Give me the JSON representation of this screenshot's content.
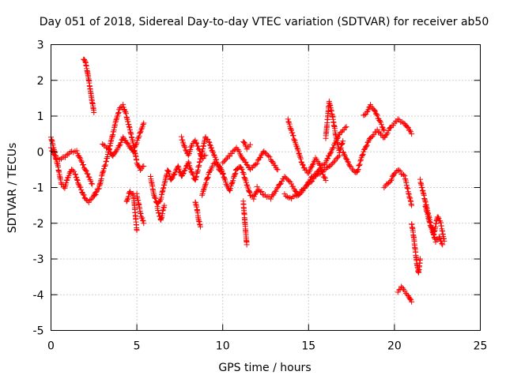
{
  "chart_data": {
    "type": "scatter",
    "title": "Day 051 of 2018, Sidereal Day-to-day VTEC variation (SDTVAR) for receiver ab50",
    "xlabel": "GPS time / hours",
    "ylabel": "SDTVAR / TECUs",
    "xlim": [
      0,
      25
    ],
    "ylim": [
      -5,
      3
    ],
    "xticks": [
      0,
      5,
      10,
      15,
      20,
      25
    ],
    "yticks": [
      -5,
      -4,
      -3,
      -2,
      -1,
      0,
      1,
      2,
      3
    ],
    "xtick_labels": [
      "0",
      "5",
      "10",
      "15",
      "20",
      "25"
    ],
    "ytick_labels": [
      "-5",
      "-4",
      "-3",
      "-2",
      "-1",
      "0",
      "1",
      "2",
      "3"
    ],
    "grid": true,
    "marker": "+",
    "series": [
      {
        "name": "SDTVAR",
        "color": "#ff0000",
        "segments": [
          {
            "x": [
              0.0,
              0.2,
              0.4,
              0.6,
              0.8,
              1.0,
              1.2,
              1.4,
              1.6,
              1.8,
              2.0,
              2.2,
              2.4,
              2.6
            ],
            "y": [
              0.4,
              0.0,
              -0.4,
              -0.9,
              -1.0,
              -0.7,
              -0.5,
              -0.6,
              -0.9,
              -1.1,
              -1.3,
              -1.4,
              -1.3,
              -1.2
            ]
          },
          {
            "x": [
              0.0,
              0.3,
              0.6,
              0.9,
              1.2,
              1.5,
              1.8,
              2.1,
              2.4
            ],
            "y": [
              0.1,
              -0.2,
              -0.2,
              -0.1,
              0.0,
              0.0,
              -0.3,
              -0.6,
              -0.9
            ]
          },
          {
            "x": [
              1.9,
              2.0,
              2.1,
              2.2,
              2.3,
              2.4,
              2.5
            ],
            "y": [
              2.6,
              2.5,
              2.3,
              2.0,
              1.7,
              1.4,
              1.1
            ]
          },
          {
            "x": [
              2.5,
              2.8,
              3.0,
              3.2,
              3.4,
              3.6,
              3.8,
              4.0,
              4.2,
              4.4,
              4.6,
              4.8,
              5.0,
              5.2,
              5.4
            ],
            "y": [
              -1.2,
              -1.0,
              -0.6,
              -0.3,
              0.1,
              0.5,
              0.9,
              1.2,
              1.3,
              1.0,
              0.6,
              0.2,
              -0.3,
              -0.5,
              -0.4
            ]
          },
          {
            "x": [
              3.0,
              3.3,
              3.6,
              3.9,
              4.2,
              4.5,
              4.8,
              5.1,
              5.4
            ],
            "y": [
              0.2,
              0.1,
              -0.1,
              0.1,
              0.4,
              0.2,
              0.0,
              0.4,
              0.8
            ]
          },
          {
            "x": [
              4.4,
              4.6,
              4.8,
              5.0
            ],
            "y": [
              -1.4,
              -1.1,
              -1.2,
              -2.2
            ]
          },
          {
            "x": [
              5.0,
              5.2,
              5.4
            ],
            "y": [
              -1.2,
              -1.7,
              -2.0
            ]
          },
          {
            "x": [
              5.8,
              6.0,
              6.2,
              6.4,
              6.6,
              6.8,
              7.0,
              7.2,
              7.4,
              7.6,
              7.8,
              8.0,
              8.2,
              8.4,
              8.6,
              8.8,
              9.0,
              9.2,
              9.4,
              9.6,
              9.8,
              10.0
            ],
            "y": [
              -0.7,
              -1.2,
              -1.5,
              -1.3,
              -0.9,
              -0.5,
              -0.8,
              -0.6,
              -0.4,
              -0.7,
              -0.5,
              -0.3,
              -0.6,
              -0.8,
              -0.4,
              0.0,
              0.4,
              0.3,
              0.0,
              -0.2,
              -0.5,
              -0.6
            ]
          },
          {
            "x": [
              6.2,
              6.4,
              6.6
            ],
            "y": [
              -1.6,
              -1.9,
              -1.5
            ]
          },
          {
            "x": [
              7.6,
              7.8,
              8.0,
              8.2,
              8.4,
              8.6,
              8.8,
              9.0
            ],
            "y": [
              0.4,
              0.1,
              -0.1,
              0.2,
              0.3,
              0.1,
              -0.2,
              -0.1
            ]
          },
          {
            "x": [
              8.4,
              8.5,
              8.6,
              8.7
            ],
            "y": [
              -1.4,
              -1.6,
              -1.9,
              -2.1
            ]
          },
          {
            "x": [
              8.8,
              9.0,
              9.2,
              9.4,
              9.6,
              9.8,
              10.0,
              10.2,
              10.4,
              10.6,
              10.8,
              11.0,
              11.2,
              11.4,
              11.6,
              11.8,
              12.0
            ],
            "y": [
              -1.2,
              -0.9,
              -0.6,
              -0.4,
              -0.3,
              -0.4,
              -0.6,
              -0.9,
              -1.1,
              -0.8,
              -0.5,
              -0.4,
              -0.6,
              -0.9,
              -1.2,
              -1.3,
              -1.1
            ]
          },
          {
            "x": [
              10.0,
              10.4,
              10.8,
              11.2,
              11.6,
              12.0,
              12.4,
              12.8,
              13.2
            ],
            "y": [
              -0.3,
              -0.1,
              0.1,
              -0.2,
              -0.5,
              -0.3,
              0.0,
              -0.2,
              -0.5
            ]
          },
          {
            "x": [
              11.2,
              11.3,
              11.4
            ],
            "y": [
              -1.4,
              -2.0,
              -2.6
            ]
          },
          {
            "x": [
              11.2,
              11.4,
              11.6
            ],
            "y": [
              0.3,
              0.1,
              0.2
            ]
          },
          {
            "x": [
              12.0,
              12.4,
              12.8,
              13.2,
              13.6,
              14.0,
              14.4,
              14.8,
              15.2,
              15.6,
              16.0,
              16.4,
              16.8,
              17.2
            ],
            "y": [
              -1.0,
              -1.2,
              -1.3,
              -1.0,
              -0.7,
              -0.9,
              -1.2,
              -1.0,
              -0.8,
              -0.5,
              -0.3,
              0.1,
              0.5,
              0.7
            ]
          },
          {
            "x": [
              13.6,
              14.0,
              14.4,
              14.8,
              15.2,
              15.6,
              16.0,
              16.4,
              16.8
            ],
            "y": [
              -1.2,
              -1.3,
              -1.2,
              -1.0,
              -0.7,
              -0.6,
              -0.5,
              -0.3,
              -0.1
            ]
          },
          {
            "x": [
              13.8,
              14.0,
              14.2,
              14.4,
              14.6,
              14.8,
              15.0,
              15.2,
              15.4,
              15.6,
              15.8,
              16.0
            ],
            "y": [
              0.9,
              0.6,
              0.3,
              0.0,
              -0.3,
              -0.5,
              -0.6,
              -0.4,
              -0.2,
              -0.3,
              -0.6,
              -0.8
            ]
          },
          {
            "x": [
              16.0,
              16.2,
              16.4,
              16.6,
              16.8,
              17.0
            ],
            "y": [
              0.4,
              1.4,
              1.0,
              0.4,
              0.0,
              0.3
            ]
          },
          {
            "x": [
              17.0,
              17.4,
              17.8,
              18.2,
              18.6,
              19.0,
              19.4,
              19.8,
              20.2,
              20.6,
              21.0
            ],
            "y": [
              0.0,
              -0.4,
              -0.6,
              0.0,
              0.4,
              0.6,
              0.4,
              0.7,
              0.9,
              0.8,
              0.5
            ]
          },
          {
            "x": [
              18.2,
              18.4,
              18.6,
              18.8,
              19.0,
              19.2,
              19.4
            ],
            "y": [
              1.0,
              1.1,
              1.3,
              1.2,
              1.0,
              0.8,
              0.6
            ]
          },
          {
            "x": [
              19.4,
              19.6,
              19.8,
              20.0,
              20.2,
              20.4,
              20.6,
              20.8,
              21.0
            ],
            "y": [
              -1.0,
              -0.9,
              -0.8,
              -0.6,
              -0.5,
              -0.6,
              -0.7,
              -1.1,
              -1.5
            ]
          },
          {
            "x": [
              20.2,
              20.4,
              20.6,
              20.8,
              21.0
            ],
            "y": [
              -3.9,
              -3.8,
              -3.9,
              -4.0,
              -4.2
            ]
          },
          {
            "x": [
              21.0,
              21.1,
              21.2,
              21.3,
              21.4,
              21.5
            ],
            "y": [
              -2.0,
              -2.3,
              -2.7,
              -3.1,
              -3.4,
              -3.0
            ]
          },
          {
            "x": [
              21.5,
              21.7,
              21.9,
              22.1,
              22.3,
              22.5,
              22.7,
              22.9
            ],
            "y": [
              -0.8,
              -1.2,
              -1.6,
              -2.0,
              -2.3,
              -1.8,
              -2.0,
              -2.5
            ]
          },
          {
            "x": [
              21.8,
              22.0,
              22.2,
              22.4,
              22.6,
              22.8
            ],
            "y": [
              -1.5,
              -1.9,
              -2.2,
              -2.5,
              -2.4,
              -2.6
            ]
          }
        ]
      }
    ]
  }
}
